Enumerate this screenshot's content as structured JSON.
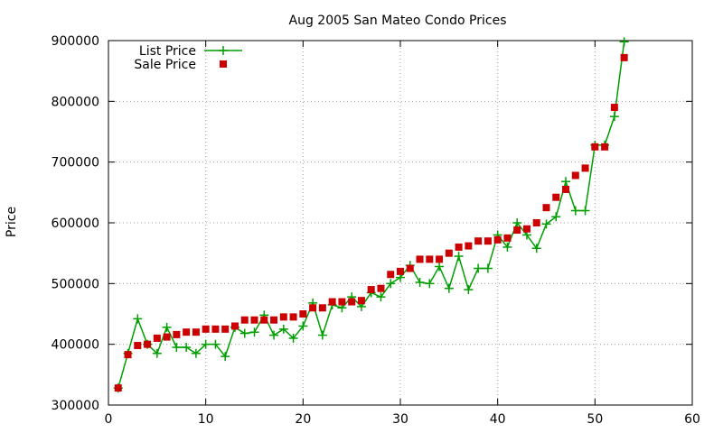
{
  "chart_data": {
    "type": "line",
    "title": "Aug 2005 San Mateo Condo Prices",
    "xlabel": "",
    "ylabel": "Price",
    "xlim": [
      0,
      60
    ],
    "ylim": [
      300000,
      900000
    ],
    "x_ticks": [
      0,
      10,
      20,
      30,
      40,
      50,
      60
    ],
    "y_ticks": [
      300000,
      400000,
      500000,
      600000,
      700000,
      800000,
      900000
    ],
    "grid": true,
    "legend_position": "top-left",
    "series": [
      {
        "name": "List Price",
        "style": "linespoints",
        "color": "#009e00",
        "x": [
          1,
          2,
          3,
          4,
          5,
          6,
          7,
          8,
          9,
          10,
          11,
          12,
          13,
          14,
          15,
          16,
          17,
          18,
          19,
          20,
          21,
          22,
          23,
          24,
          25,
          26,
          27,
          28,
          29,
          30,
          31,
          32,
          33,
          34,
          35,
          36,
          37,
          38,
          39,
          40,
          41,
          42,
          43,
          44,
          45,
          46,
          47,
          48,
          49,
          50,
          51,
          52,
          53
        ],
        "y": [
          328000,
          385000,
          442000,
          400000,
          385000,
          428000,
          395000,
          395000,
          385000,
          400000,
          400000,
          380000,
          428000,
          418000,
          420000,
          448000,
          415000,
          425000,
          410000,
          430000,
          468000,
          415000,
          465000,
          460000,
          478000,
          462000,
          485000,
          478000,
          500000,
          510000,
          530000,
          502000,
          500000,
          528000,
          492000,
          545000,
          490000,
          525000,
          525000,
          580000,
          560000,
          600000,
          580000,
          558000,
          598000,
          610000,
          668000,
          620000,
          620000,
          728000,
          728000,
          775000,
          898000
        ]
      },
      {
        "name": "Sale Price",
        "style": "points",
        "color": "#cc0000",
        "x": [
          1,
          2,
          3,
          4,
          5,
          6,
          7,
          8,
          9,
          10,
          11,
          12,
          13,
          14,
          15,
          16,
          17,
          18,
          19,
          20,
          21,
          22,
          23,
          24,
          25,
          26,
          27,
          28,
          29,
          30,
          31,
          32,
          33,
          34,
          35,
          36,
          37,
          38,
          39,
          40,
          41,
          42,
          43,
          44,
          45,
          46,
          47,
          48,
          49,
          50,
          51,
          52,
          53
        ],
        "y": [
          328000,
          383000,
          398000,
          400000,
          410000,
          412000,
          416000,
          420000,
          420000,
          425000,
          425000,
          425000,
          430000,
          440000,
          440000,
          440000,
          440000,
          445000,
          445000,
          450000,
          460000,
          460000,
          470000,
          470000,
          470000,
          472000,
          490000,
          492000,
          515000,
          520000,
          525000,
          540000,
          540000,
          540000,
          550000,
          560000,
          562000,
          570000,
          570000,
          572000,
          575000,
          588000,
          590000,
          600000,
          625000,
          642000,
          655000,
          678000,
          690000,
          725000,
          725000,
          790000,
          872000
        ]
      }
    ]
  }
}
